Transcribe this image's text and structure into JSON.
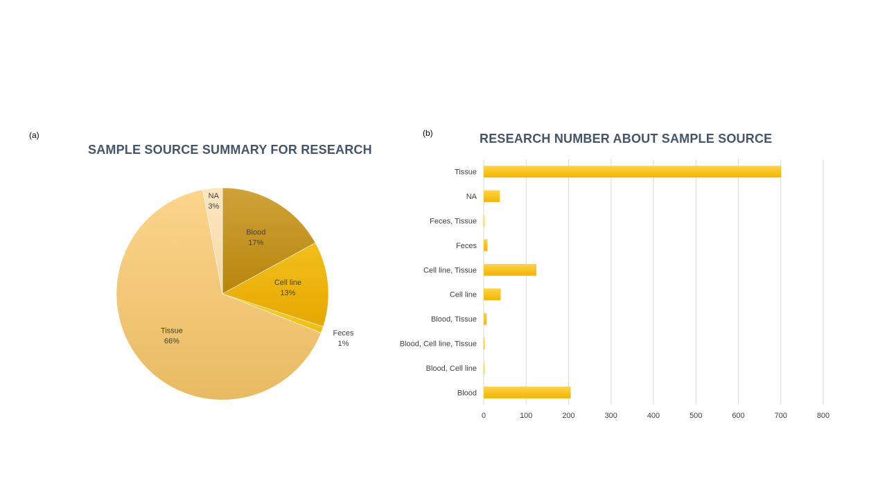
{
  "panels": {
    "a": "(a)",
    "b": "(b)"
  },
  "chart_data": [
    {
      "type": "pie",
      "title": "SAMPLE SOURCE SUMMARY FOR RESEARCH",
      "slices": [
        {
          "label": "Blood",
          "percent_label": "17%",
          "value": 17,
          "color_light": "#cfa23a",
          "color_dark": "#b8860b"
        },
        {
          "label": "Cell line",
          "percent_label": "13%",
          "value": 13,
          "color_light": "#f2bf1a",
          "color_dark": "#e6a800"
        },
        {
          "label": "Feces",
          "percent_label": "1%",
          "value": 1,
          "color_light": "#f7cf2e",
          "color_dark": "#efbd12"
        },
        {
          "label": "Tissue",
          "percent_label": "66%",
          "value": 66,
          "color_light": "#fcd58c",
          "color_dark": "#e8ba62"
        },
        {
          "label": "NA",
          "percent_label": "3%",
          "value": 3,
          "color_light": "#fde6bf",
          "color_dark": "#f6d9a6"
        }
      ]
    },
    {
      "type": "bar",
      "orientation": "horizontal",
      "title": "RESEARCH NUMBER ABOUT SAMPLE SOURCE",
      "categories": [
        "Tissue",
        "NA",
        "Feces, Tissue",
        "Feces",
        "Cell line, Tissue",
        "Cell line",
        "Blood, Tissue",
        "Blood, Cell line, Tissue",
        "Blood, Cell line",
        "Blood"
      ],
      "values": [
        701,
        38,
        1,
        9,
        124,
        40,
        7,
        2,
        1,
        205
      ],
      "xlim": [
        0,
        800
      ],
      "xticks": [
        "0",
        "100",
        "200",
        "300",
        "400",
        "500",
        "600",
        "700",
        "800"
      ],
      "grid": "vertical",
      "bar_color_top": "#ffd24a",
      "bar_color_bottom": "#f2b600"
    }
  ]
}
